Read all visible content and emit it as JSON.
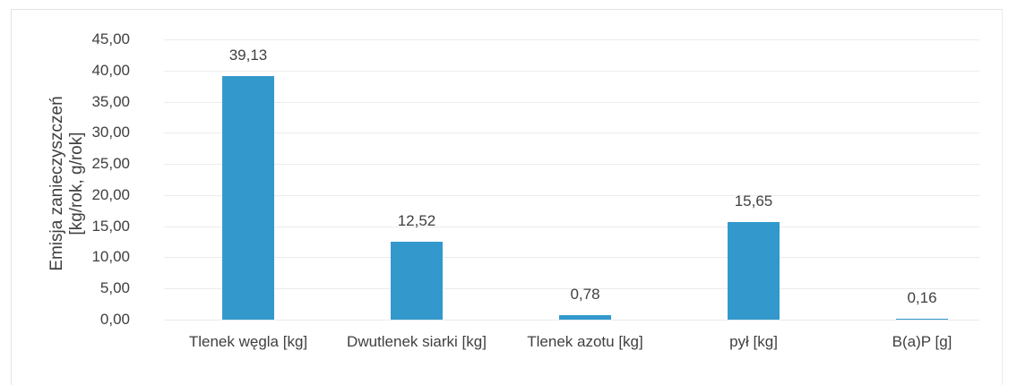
{
  "chart_data": {
    "type": "bar",
    "y_label": [
      "Emisja zanieczyszczeń",
      "[kg/rok, g/rok]"
    ],
    "categories": [
      "Tlenek węgla [kg]",
      "Dwutlenek siarki [kg]",
      "Tlenek azotu [kg]",
      "pył [kg]",
      "B(a)P [g]"
    ],
    "values": [
      39.13,
      12.52,
      0.78,
      15.65,
      0.16
    ],
    "value_labels": [
      "39,13",
      "12,52",
      "0,78",
      "15,65",
      "0,16"
    ],
    "color": "#3399cc",
    "ylim": [
      0,
      45
    ],
    "yticks": [
      {
        "value": 0,
        "label": "0,00"
      },
      {
        "value": 5,
        "label": "5,00"
      },
      {
        "value": 10,
        "label": "10,00"
      },
      {
        "value": 15,
        "label": "15,00"
      },
      {
        "value": 20,
        "label": "20,00"
      },
      {
        "value": 25,
        "label": "25,00"
      },
      {
        "value": 30,
        "label": "30,00"
      },
      {
        "value": 35,
        "label": "35,00"
      },
      {
        "value": 40,
        "label": "40,00"
      },
      {
        "value": 45,
        "label": "45,00"
      }
    ],
    "grid": true
  }
}
